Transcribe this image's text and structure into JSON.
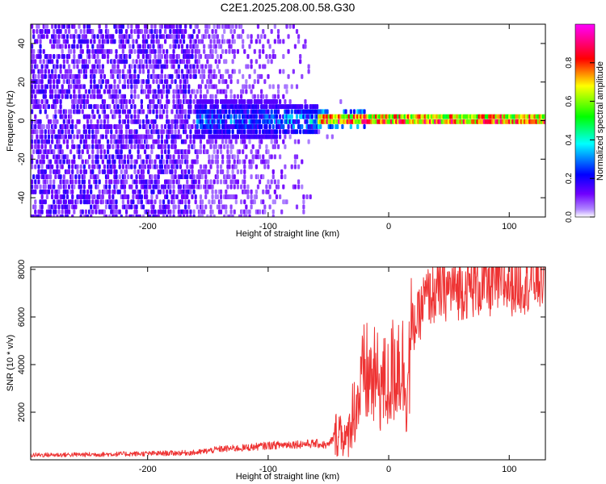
{
  "title": "C2E1.2025.208.00.58.G30",
  "chart_data": [
    {
      "type": "heatmap",
      "xlabel": "Height of straight line (km)",
      "ylabel": "Frequency (Hz)",
      "xlim": [
        -297,
        130
      ],
      "ylim": [
        -50,
        50
      ],
      "xticks": [
        -200,
        -100,
        0,
        100
      ],
      "yticks": [
        -40,
        -20,
        0,
        20,
        40
      ],
      "colorbar": {
        "label": "Normalized spectral amplitude",
        "range": [
          0,
          1
        ],
        "ticks": [
          "0.0",
          "0.2",
          "0.4",
          "0.6",
          "0.8"
        ],
        "tick_values": [
          0,
          0.2,
          0.4,
          0.6,
          0.8
        ],
        "colormap": "rainbow (white to violet to blue to cyan to green to yellow to red to magenta)"
      },
      "features": [
        {
          "x_range": [
            -297,
            -160
          ],
          "freq_range": [
            -50,
            50
          ],
          "amplitude": [
            0.05,
            0.2
          ],
          "note": "broadband scatter"
        },
        {
          "x_range": [
            -160,
            -60
          ],
          "freq_range": [
            -10,
            10
          ],
          "amplitude": [
            0.2,
            0.5
          ]
        },
        {
          "x_range": [
            -60,
            130
          ],
          "freq_center": 0,
          "freq_width": 3,
          "amplitude": [
            0.6,
            1.0
          ]
        }
      ]
    },
    {
      "type": "line",
      "xlabel": "Height of straight line (km)",
      "ylabel": "SNR (10 * v/v)",
      "xlim": [
        -297,
        130
      ],
      "ylim": [
        0,
        8100
      ],
      "xticks": [
        -200,
        -100,
        0,
        100
      ],
      "yticks": [
        2000,
        4000,
        6000,
        8000
      ],
      "color": "#ee3333",
      "series": [
        {
          "x": [
            -297,
            -250,
            -200,
            -160,
            -140,
            -120,
            -100,
            -80,
            -60,
            -50,
            -45,
            -40,
            -35,
            -30,
            -25,
            -20,
            -15,
            -10,
            -5,
            0,
            5,
            10,
            15,
            20,
            25,
            30,
            40,
            50,
            60,
            70,
            80,
            90,
            100,
            110,
            120,
            130
          ],
          "y": [
            200,
            220,
            260,
            300,
            450,
            500,
            600,
            650,
            680,
            600,
            1000,
            1300,
            700,
            2000,
            2500,
            3600,
            3400,
            3300,
            3200,
            3100,
            4000,
            4300,
            3000,
            5500,
            6000,
            6800,
            7000,
            7200,
            7200,
            7300,
            7300,
            7400,
            7400,
            7500,
            7600,
            7700
          ]
        }
      ]
    }
  ]
}
